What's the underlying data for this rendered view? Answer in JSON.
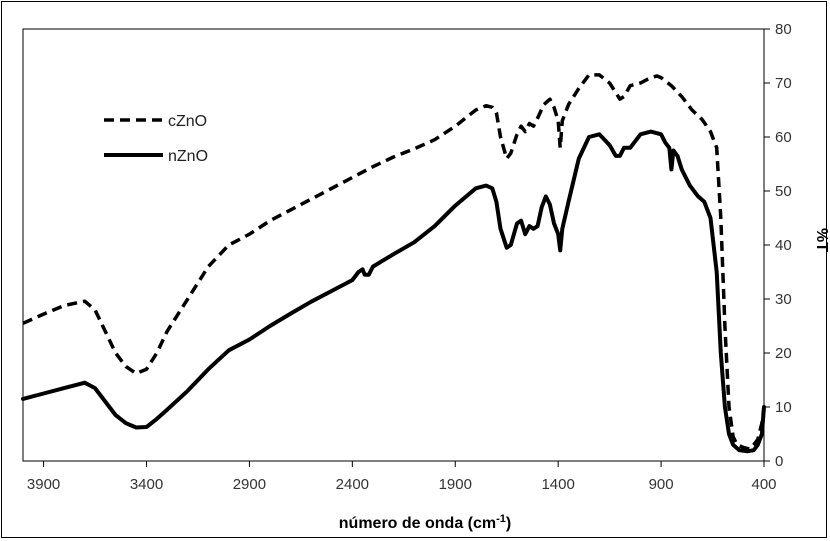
{
  "chart_data": {
    "type": "line",
    "xlabel_main": "número de onda (cm",
    "xlabel_sup": "-1",
    "xlabel_end": ")",
    "ylabel": "%T",
    "xlim": [
      4000,
      400
    ],
    "ylim": [
      0,
      80
    ],
    "x_ticks": [
      3900,
      3400,
      2900,
      2400,
      1900,
      1400,
      900,
      400
    ],
    "y_ticks": [
      0,
      10,
      20,
      30,
      40,
      50,
      60,
      70,
      80
    ],
    "legend_position": "top-left",
    "series": [
      {
        "name": "cZnO",
        "style": "dashed",
        "color": "#000000",
        "points": [
          [
            4000,
            25.5
          ],
          [
            3900,
            27.2
          ],
          [
            3800,
            28.8
          ],
          [
            3700,
            29.6
          ],
          [
            3650,
            28
          ],
          [
            3600,
            24
          ],
          [
            3550,
            20
          ],
          [
            3500,
            17.5
          ],
          [
            3450,
            16.2
          ],
          [
            3400,
            17
          ],
          [
            3350,
            20
          ],
          [
            3300,
            24
          ],
          [
            3200,
            30
          ],
          [
            3100,
            36
          ],
          [
            3000,
            40
          ],
          [
            2900,
            42
          ],
          [
            2800,
            44.5
          ],
          [
            2700,
            46.5
          ],
          [
            2600,
            48.5
          ],
          [
            2500,
            50.5
          ],
          [
            2400,
            52.5
          ],
          [
            2300,
            54.5
          ],
          [
            2200,
            56.3
          ],
          [
            2100,
            57.8
          ],
          [
            2000,
            59.5
          ],
          [
            1900,
            62
          ],
          [
            1850,
            63.5
          ],
          [
            1800,
            65
          ],
          [
            1750,
            65.8
          ],
          [
            1720,
            65.5
          ],
          [
            1700,
            64.5
          ],
          [
            1680,
            60
          ],
          [
            1650,
            56
          ],
          [
            1630,
            57
          ],
          [
            1600,
            60.5
          ],
          [
            1580,
            62
          ],
          [
            1560,
            61
          ],
          [
            1540,
            62.5
          ],
          [
            1520,
            62
          ],
          [
            1500,
            63.5
          ],
          [
            1470,
            66
          ],
          [
            1440,
            67
          ],
          [
            1420,
            65.5
          ],
          [
            1400,
            63
          ],
          [
            1390,
            58
          ],
          [
            1380,
            63
          ],
          [
            1350,
            66
          ],
          [
            1300,
            69
          ],
          [
            1250,
            71.5
          ],
          [
            1200,
            71.5
          ],
          [
            1150,
            70
          ],
          [
            1100,
            67
          ],
          [
            1080,
            67.5
          ],
          [
            1050,
            69.5
          ],
          [
            1000,
            70
          ],
          [
            950,
            71
          ],
          [
            920,
            71.3
          ],
          [
            900,
            71
          ],
          [
            850,
            69.5
          ],
          [
            800,
            67.5
          ],
          [
            750,
            65
          ],
          [
            700,
            63.2
          ],
          [
            660,
            61
          ],
          [
            630,
            58
          ],
          [
            610,
            45
          ],
          [
            590,
            25
          ],
          [
            570,
            10
          ],
          [
            550,
            4.5
          ],
          [
            530,
            3
          ],
          [
            500,
            2.5
          ],
          [
            470,
            2.2
          ],
          [
            450,
            3
          ],
          [
            430,
            4
          ],
          [
            410,
            7
          ],
          [
            400,
            10
          ]
        ]
      },
      {
        "name": "nZnO",
        "style": "solid",
        "color": "#000000",
        "points": [
          [
            4000,
            11.5
          ],
          [
            3900,
            12.5
          ],
          [
            3800,
            13.5
          ],
          [
            3700,
            14.5
          ],
          [
            3650,
            13.5
          ],
          [
            3600,
            11
          ],
          [
            3550,
            8.5
          ],
          [
            3500,
            7
          ],
          [
            3450,
            6.2
          ],
          [
            3400,
            6.3
          ],
          [
            3350,
            7.8
          ],
          [
            3300,
            9.5
          ],
          [
            3200,
            13
          ],
          [
            3100,
            17
          ],
          [
            3000,
            20.5
          ],
          [
            2900,
            22.5
          ],
          [
            2800,
            25
          ],
          [
            2700,
            27.3
          ],
          [
            2600,
            29.5
          ],
          [
            2500,
            31.5
          ],
          [
            2400,
            33.5
          ],
          [
            2370,
            35
          ],
          [
            2350,
            35.5
          ],
          [
            2340,
            34.5
          ],
          [
            2320,
            34.5
          ],
          [
            2300,
            36
          ],
          [
            2200,
            38.3
          ],
          [
            2100,
            40.5
          ],
          [
            2000,
            43.5
          ],
          [
            1900,
            47.3
          ],
          [
            1800,
            50.5
          ],
          [
            1750,
            51
          ],
          [
            1720,
            50.5
          ],
          [
            1700,
            48
          ],
          [
            1680,
            43
          ],
          [
            1650,
            39.5
          ],
          [
            1630,
            40
          ],
          [
            1600,
            44
          ],
          [
            1580,
            44.5
          ],
          [
            1560,
            42
          ],
          [
            1540,
            43.5
          ],
          [
            1520,
            43
          ],
          [
            1500,
            43.5
          ],
          [
            1480,
            47
          ],
          [
            1460,
            49
          ],
          [
            1440,
            47.5
          ],
          [
            1420,
            44
          ],
          [
            1400,
            42
          ],
          [
            1390,
            39
          ],
          [
            1380,
            43
          ],
          [
            1350,
            48
          ],
          [
            1300,
            56
          ],
          [
            1250,
            60
          ],
          [
            1200,
            60.5
          ],
          [
            1150,
            58.5
          ],
          [
            1120,
            56.5
          ],
          [
            1100,
            56.5
          ],
          [
            1080,
            58
          ],
          [
            1050,
            58
          ],
          [
            1000,
            60.5
          ],
          [
            950,
            61
          ],
          [
            900,
            60.5
          ],
          [
            880,
            59
          ],
          [
            860,
            58
          ],
          [
            850,
            54
          ],
          [
            840,
            57.5
          ],
          [
            820,
            56.5
          ],
          [
            800,
            54
          ],
          [
            760,
            51
          ],
          [
            720,
            49
          ],
          [
            690,
            48
          ],
          [
            660,
            45
          ],
          [
            630,
            35
          ],
          [
            610,
            20
          ],
          [
            590,
            10
          ],
          [
            570,
            5
          ],
          [
            550,
            3
          ],
          [
            520,
            2
          ],
          [
            480,
            1.8
          ],
          [
            450,
            2
          ],
          [
            430,
            3
          ],
          [
            410,
            5
          ],
          [
            400,
            10
          ]
        ]
      }
    ]
  }
}
